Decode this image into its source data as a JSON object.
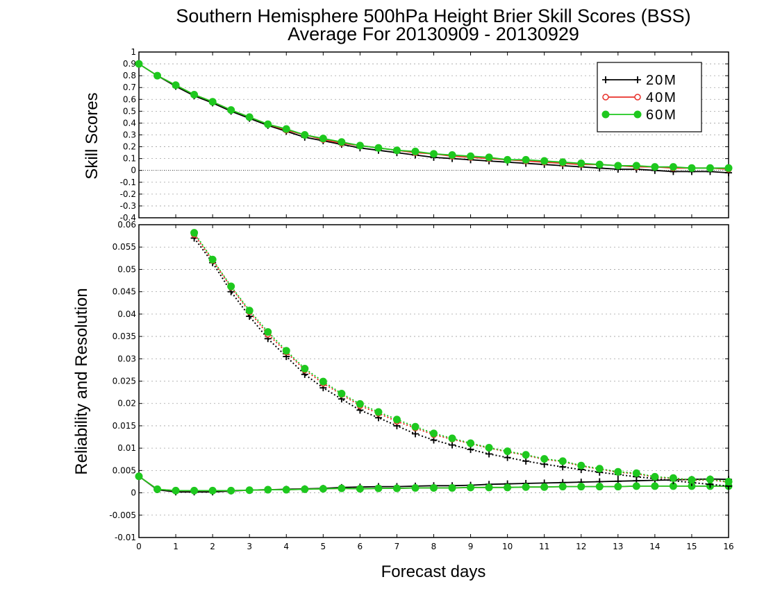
{
  "chart": {
    "title_line1": "Southern Hemisphere 500hPa Height Brier Skill Scores (BSS)",
    "title_line2": "Average For 20130909 - 20130929",
    "xlabel": "Forecast days",
    "x_ticks": [
      "0",
      "1",
      "2",
      "3",
      "4",
      "5",
      "6",
      "7",
      "8",
      "9",
      "10",
      "11",
      "12",
      "13",
      "14",
      "15",
      "16"
    ],
    "legend": [
      {
        "name": "20M",
        "marker": "plus",
        "color": "#000000"
      },
      {
        "name": "40M",
        "marker": "open-circle",
        "color": "#e8302a"
      },
      {
        "name": "60M",
        "marker": "filled-circle",
        "color": "#1ec81e"
      }
    ],
    "grid_color": "#a0a0a0",
    "colors": {
      "20M": "#000000",
      "40M": "#e8302a",
      "60M": "#1ec81e"
    }
  },
  "chart_data": [
    {
      "type": "line",
      "ylabel": "Skill Scores",
      "ylim": [
        -0.4,
        1
      ],
      "xlim": [
        0,
        16
      ],
      "y_ticks": [
        "1",
        "0.9",
        "0.8",
        "0.7",
        "0.6",
        "0.5",
        "0.4",
        "0.3",
        "0.2",
        "0.1",
        "0",
        "-0.1",
        "-0.2",
        "-0.3",
        "-0.4"
      ],
      "grid": true,
      "legend_position": "top-right",
      "x": [
        0,
        0.5,
        1,
        1.5,
        2,
        2.5,
        3,
        3.5,
        4,
        4.5,
        5,
        5.5,
        6,
        6.5,
        7,
        7.5,
        8,
        8.5,
        9,
        9.5,
        10,
        10.5,
        11,
        11.5,
        12,
        12.5,
        13,
        13.5,
        14,
        14.5,
        15,
        15.5,
        16
      ],
      "series": [
        {
          "name": "20M",
          "values": [
            0.9,
            0.8,
            0.71,
            0.63,
            0.57,
            0.5,
            0.44,
            0.38,
            0.33,
            0.28,
            0.25,
            0.22,
            0.19,
            0.17,
            0.15,
            0.13,
            0.11,
            0.1,
            0.09,
            0.08,
            0.07,
            0.06,
            0.05,
            0.04,
            0.03,
            0.02,
            0.01,
            0.01,
            0.0,
            -0.01,
            -0.01,
            -0.01,
            -0.02
          ]
        },
        {
          "name": "40M",
          "values": [
            0.9,
            0.8,
            0.72,
            0.64,
            0.58,
            0.51,
            0.45,
            0.39,
            0.34,
            0.3,
            0.26,
            0.23,
            0.21,
            0.19,
            0.17,
            0.15,
            0.14,
            0.12,
            0.11,
            0.1,
            0.09,
            0.08,
            0.07,
            0.06,
            0.05,
            0.05,
            0.04,
            0.03,
            0.03,
            0.02,
            0.02,
            0.02,
            0.01
          ]
        },
        {
          "name": "60M",
          "values": [
            0.9,
            0.8,
            0.72,
            0.64,
            0.58,
            0.51,
            0.45,
            0.39,
            0.35,
            0.3,
            0.27,
            0.24,
            0.21,
            0.19,
            0.17,
            0.16,
            0.14,
            0.13,
            0.12,
            0.11,
            0.09,
            0.09,
            0.08,
            0.07,
            0.06,
            0.05,
            0.04,
            0.04,
            0.03,
            0.03,
            0.02,
            0.02,
            0.02
          ]
        }
      ]
    },
    {
      "type": "line",
      "ylabel": "Reliability and Resolution",
      "ylim": [
        -0.01,
        0.06
      ],
      "xlim": [
        0,
        16
      ],
      "y_ticks": [
        "0.06",
        "0.055",
        "0.05",
        "0.045",
        "0.04",
        "0.035",
        "0.03",
        "0.025",
        "0.02",
        "0.015",
        "0.01",
        "0.005",
        "0",
        "-0.005",
        "-0.01"
      ],
      "grid": true,
      "x": [
        0,
        0.5,
        1,
        1.5,
        2,
        2.5,
        3,
        3.5,
        4,
        4.5,
        5,
        5.5,
        6,
        6.5,
        7,
        7.5,
        8,
        8.5,
        9,
        9.5,
        10,
        10.5,
        11,
        11.5,
        12,
        12.5,
        13,
        13.5,
        14,
        14.5,
        15,
        15.5,
        16
      ],
      "reliability_series": [
        {
          "name": "20M",
          "values": [
            0.0037,
            0.0007,
            0.0002,
            0.0002,
            0.0002,
            0.0004,
            0.0006,
            0.0007,
            0.0008,
            0.0009,
            0.001,
            0.0012,
            0.0013,
            0.0014,
            0.0014,
            0.0015,
            0.0016,
            0.0016,
            0.0017,
            0.0019,
            0.002,
            0.0021,
            0.0022,
            0.0023,
            0.0024,
            0.0025,
            0.0026,
            0.0027,
            0.0028,
            0.0029,
            0.003,
            0.0031,
            0.003
          ]
        },
        {
          "name": "40M",
          "values": [
            0.0037,
            0.0008,
            0.0005,
            0.0005,
            0.0005,
            0.0005,
            0.0006,
            0.0007,
            0.0007,
            0.0008,
            0.0009,
            0.001,
            0.0009,
            0.001,
            0.001,
            0.0011,
            0.0011,
            0.0011,
            0.0012,
            0.0012,
            0.0012,
            0.0013,
            0.0013,
            0.0014,
            0.0014,
            0.0014,
            0.0014,
            0.0015,
            0.0015,
            0.0015,
            0.0015,
            0.0015,
            0.0015
          ]
        },
        {
          "name": "60M",
          "values": [
            0.0037,
            0.0008,
            0.0005,
            0.0005,
            0.0005,
            0.0005,
            0.0006,
            0.0007,
            0.0007,
            0.0008,
            0.0009,
            0.001,
            0.0009,
            0.001,
            0.001,
            0.0011,
            0.0011,
            0.0011,
            0.0012,
            0.0012,
            0.0012,
            0.0013,
            0.0013,
            0.0014,
            0.0014,
            0.0014,
            0.0014,
            0.0015,
            0.0015,
            0.0015,
            0.0015,
            0.0015,
            0.0015
          ]
        }
      ],
      "resolution_x": [
        1.5,
        2,
        2.5,
        3,
        3.5,
        4,
        4.5,
        5,
        5.5,
        6,
        6.5,
        7,
        7.5,
        8,
        8.5,
        9,
        9.5,
        10,
        10.5,
        11,
        11.5,
        12,
        12.5,
        13,
        13.5,
        14,
        14.5,
        15,
        15.5,
        16
      ],
      "resolution_series": [
        {
          "name": "20M",
          "values": [
            0.057,
            0.0515,
            0.045,
            0.0395,
            0.0345,
            0.0305,
            0.0265,
            0.0235,
            0.021,
            0.0185,
            0.0168,
            0.015,
            0.0132,
            0.0118,
            0.0107,
            0.0097,
            0.0087,
            0.0079,
            0.0071,
            0.0064,
            0.0058,
            0.0052,
            0.0046,
            0.0041,
            0.0036,
            0.0032,
            0.0027,
            0.0023,
            0.0019,
            0.0015
          ]
        },
        {
          "name": "40M",
          "values": [
            0.0578,
            0.052,
            0.046,
            0.0405,
            0.0355,
            0.0315,
            0.0275,
            0.0245,
            0.022,
            0.0195,
            0.0178,
            0.016,
            0.0145,
            0.013,
            0.012,
            0.011,
            0.01,
            0.0092,
            0.0084,
            0.0075,
            0.007,
            0.006,
            0.0053,
            0.0046,
            0.0043,
            0.0035,
            0.0032,
            0.0028,
            0.0029,
            0.0024
          ]
        },
        {
          "name": "60M",
          "values": [
            0.0582,
            0.0522,
            0.0462,
            0.0408,
            0.036,
            0.0318,
            0.0278,
            0.0249,
            0.0222,
            0.0199,
            0.0181,
            0.0164,
            0.0148,
            0.0133,
            0.0122,
            0.0111,
            0.0101,
            0.0093,
            0.0085,
            0.0076,
            0.0071,
            0.0061,
            0.0054,
            0.0047,
            0.0044,
            0.0036,
            0.0033,
            0.0029,
            0.003,
            0.0025
          ]
        }
      ]
    }
  ]
}
